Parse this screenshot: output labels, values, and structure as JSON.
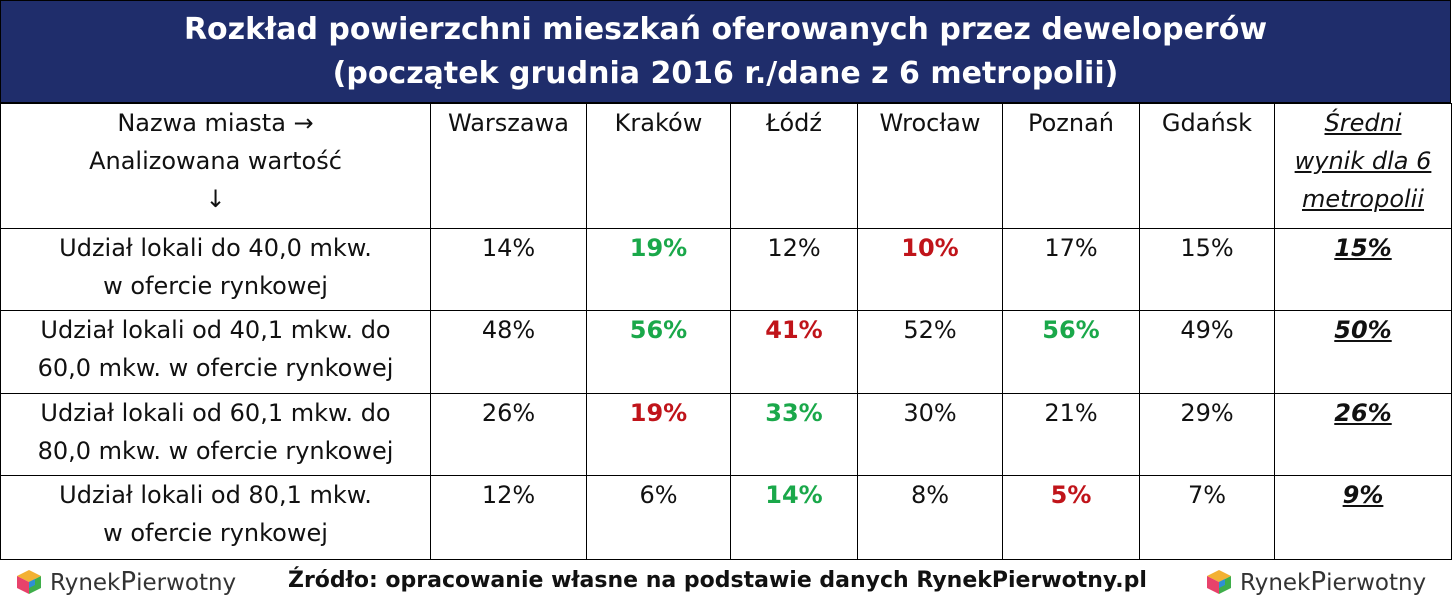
{
  "title": {
    "line1": "Rozkład powierzchni mieszkań oferowanych przez deweloperów",
    "line2": "(początek grudnia 2016 r./dane z 6 metropolii)"
  },
  "header": {
    "label_line1": "Nazwa miasta →",
    "label_line2": "Analizowana wartość",
    "label_line3": "↓",
    "cities": [
      "Warszawa",
      "Kraków",
      "Łódź",
      "Wrocław",
      "Poznań",
      "Gdańsk"
    ],
    "avg_line1": "Średni",
    "avg_line2": "wynik dla 6",
    "avg_line3": "metropolii"
  },
  "rows": [
    {
      "label_line1": "Udział lokali do 40,0 mkw.",
      "label_line2": "w ofercie rynkowej",
      "values": [
        "14%",
        "19%",
        "12%",
        "10%",
        "17%",
        "15%"
      ],
      "avg": "15%"
    },
    {
      "label_line1": "Udział lokali od 40,1 mkw. do",
      "label_line2": "60,0 mkw. w ofercie rynkowej",
      "values": [
        "48%",
        "56%",
        "41%",
        "52%",
        "56%",
        "49%"
      ],
      "avg": "50%"
    },
    {
      "label_line1": "Udział lokali od 60,1 mkw. do",
      "label_line2": "80,0 mkw. w ofercie rynkowej",
      "values": [
        "26%",
        "19%",
        "33%",
        "30%",
        "21%",
        "29%"
      ],
      "avg": "26%"
    },
    {
      "label_line1": "Udział lokali od 80,1 mkw.",
      "label_line2": "w ofercie rynkowej",
      "values": [
        "12%",
        "6%",
        "14%",
        "8%",
        "5%",
        "7%"
      ],
      "avg": "9%"
    }
  ],
  "colors": {
    "title_bg": "#1f2d6b",
    "highlight_high": "#1aa84a",
    "highlight_low": "#c0141a"
  },
  "footer": {
    "source": "Źródło: opracowanie własne na podstawie danych RynekPierwotny.pl",
    "logo_left": {
      "part1": "Rynek",
      "p": "P",
      "part2": "ierwotny"
    },
    "logo_right": {
      "part1": "Rynek",
      "p": "P",
      "part2": "ierwotny"
    }
  }
}
